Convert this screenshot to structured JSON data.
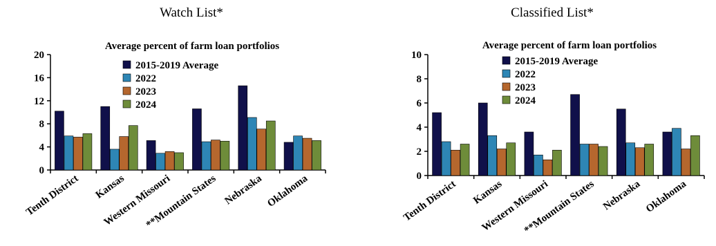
{
  "chart_data": [
    {
      "type": "bar",
      "title": "Watch List*",
      "subtitle": "Average percent of farm loan portfolios",
      "categories": [
        "Tenth District",
        "Kansas",
        "Western Missouri",
        "**Mountain States",
        "Nebraska",
        "Oklahoma"
      ],
      "series": [
        {
          "name": "2015-2019 Average",
          "color": "#10104a",
          "values": [
            10.2,
            11.0,
            5.1,
            10.6,
            14.6,
            4.8
          ]
        },
        {
          "name": "2022",
          "color": "#2e86b5",
          "values": [
            5.9,
            3.6,
            2.9,
            4.9,
            9.1,
            5.9
          ]
        },
        {
          "name": "2023",
          "color": "#b5672e",
          "values": [
            5.7,
            5.8,
            3.2,
            5.2,
            7.1,
            5.5
          ]
        },
        {
          "name": "2024",
          "color": "#6e8c3a",
          "values": [
            6.3,
            7.7,
            3.0,
            5.0,
            8.5,
            5.1
          ]
        }
      ],
      "ylim": [
        0,
        20
      ],
      "yticks": [
        "0",
        "4",
        "8",
        "12",
        "16",
        "20"
      ],
      "legend": "top-center"
    },
    {
      "type": "bar",
      "title": "Classified List*",
      "subtitle": "Average percent of farm loan portfolios",
      "categories": [
        "Tenth District",
        "Kansas",
        "Western Missouri",
        "**Mountain States",
        "Nebraska",
        "Oklahoma"
      ],
      "series": [
        {
          "name": "2015-2019 Average",
          "color": "#10104a",
          "values": [
            5.2,
            6.0,
            3.6,
            6.7,
            5.5,
            3.6
          ]
        },
        {
          "name": "2022",
          "color": "#2e86b5",
          "values": [
            2.8,
            3.3,
            1.7,
            2.6,
            2.7,
            3.9
          ]
        },
        {
          "name": "2023",
          "color": "#b5672e",
          "values": [
            2.1,
            2.2,
            1.3,
            2.6,
            2.3,
            2.2
          ]
        },
        {
          "name": "2024",
          "color": "#6e8c3a",
          "values": [
            2.6,
            2.7,
            2.1,
            2.4,
            2.6,
            3.3
          ]
        }
      ],
      "ylim": [
        0,
        10
      ],
      "yticks": [
        "0",
        "2",
        "4",
        "6",
        "8",
        "10"
      ],
      "legend": "top-center"
    }
  ]
}
